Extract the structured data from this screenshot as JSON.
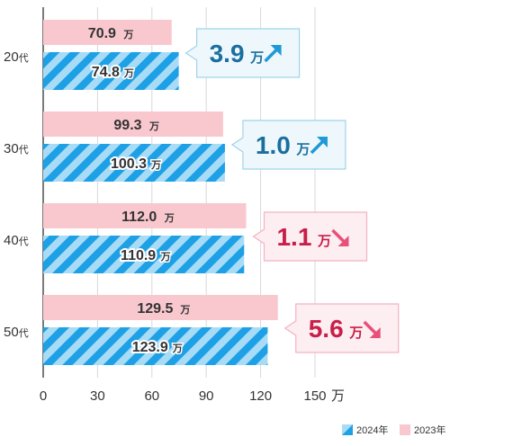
{
  "chart_data": {
    "type": "bar",
    "orientation": "horizontal",
    "categories": [
      "20代",
      "30代",
      "40代",
      "50代"
    ],
    "series": [
      {
        "name": "2023年",
        "values": [
          70.9,
          99.3,
          112.0,
          129.5
        ],
        "color": "#f9c8cf",
        "pattern": "solid"
      },
      {
        "name": "2024年",
        "values": [
          74.8,
          100.3,
          110.9,
          123.9
        ],
        "color": "#1da0e6",
        "pattern": "diagonal-stripes",
        "stripe_color": "#a8dcf6"
      }
    ],
    "value_labels": {
      "2023年": [
        "70.9",
        "99.3",
        "112.0",
        "129.5"
      ],
      "2024年": [
        "74.8",
        "100.3",
        "110.9",
        "123.9"
      ]
    },
    "value_unit": "万",
    "callouts": [
      {
        "value": "3.9",
        "unit": "万",
        "direction": "up",
        "color": "#1a6fa0",
        "arrow_color": "#1e9ad6"
      },
      {
        "value": "1.0",
        "unit": "万",
        "direction": "up",
        "color": "#1a6fa0",
        "arrow_color": "#1e9ad6"
      },
      {
        "value": "1.1",
        "unit": "万",
        "direction": "down",
        "color": "#c81e4a",
        "arrow_color": "#e8507a"
      },
      {
        "value": "5.6",
        "unit": "万",
        "direction": "down",
        "color": "#c81e4a",
        "arrow_color": "#e8507a"
      }
    ],
    "xlim": [
      0,
      150
    ],
    "xticks": [
      "0",
      "30",
      "60",
      "90",
      "120",
      "150"
    ],
    "xunit": "万",
    "grid": "vertical-lines",
    "legend": {
      "placement": "bottom-right",
      "items": [
        "2024年",
        "2023年"
      ]
    },
    "title": "",
    "xlabel": "",
    "ylabel": ""
  }
}
